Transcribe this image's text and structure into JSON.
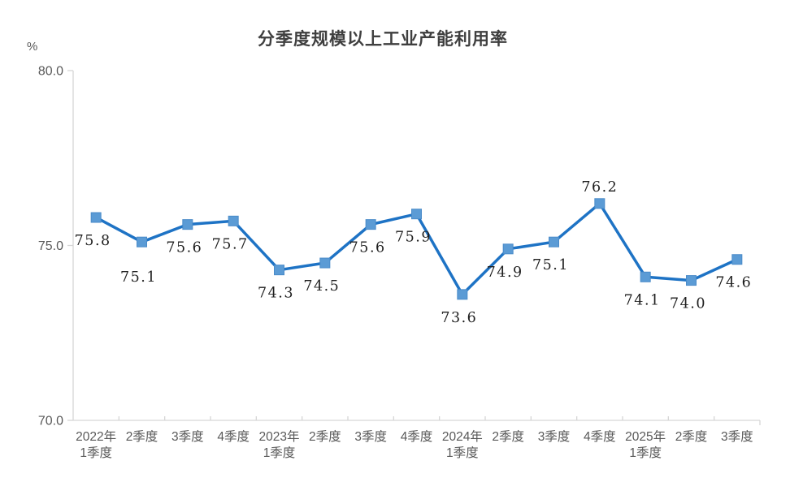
{
  "chart_data": {
    "type": "line",
    "title": "分季度规模以上工业产能利用率",
    "ylabel": "%",
    "xlabel": "",
    "ylim": [
      70.0,
      80.0
    ],
    "grid": false,
    "legend": "none",
    "y_ticks": [
      {
        "value": 80.0,
        "label": "80.0"
      },
      {
        "value": 75.0,
        "label": "75.0"
      },
      {
        "value": 70.0,
        "label": "70.0"
      }
    ],
    "categories": [
      [
        "2022年",
        "1季度"
      ],
      [
        "2季度"
      ],
      [
        "3季度"
      ],
      [
        "4季度"
      ],
      [
        "2023年",
        "1季度"
      ],
      [
        "2季度"
      ],
      [
        "3季度"
      ],
      [
        "4季度"
      ],
      [
        "2024年",
        "1季度"
      ],
      [
        "2季度"
      ],
      [
        "3季度"
      ],
      [
        "4季度"
      ],
      [
        "2025年",
        "1季度"
      ],
      [
        "2季度"
      ],
      [
        "3季度"
      ]
    ],
    "values": [
      75.8,
      75.1,
      75.6,
      75.7,
      74.3,
      74.5,
      75.6,
      75.9,
      73.6,
      74.9,
      75.1,
      76.2,
      74.1,
      74.0,
      74.6
    ],
    "data_labels": [
      "75.8",
      "75.1",
      "75.6",
      "75.7",
      "74.3",
      "74.5",
      "75.6",
      "75.9",
      "73.6",
      "74.9",
      "75.1",
      "76.2",
      "74.1",
      "74.0",
      "74.6"
    ],
    "label_placements": [
      "below",
      "below-far",
      "below",
      "below",
      "below",
      "below",
      "below",
      "below",
      "below",
      "below",
      "below",
      "above",
      "below",
      "below",
      "below"
    ],
    "colors": {
      "line": "#1E73C5",
      "marker_fill": "#5B9BD5",
      "marker_edge": "#4A8BC9",
      "axis": "#D6D6D6",
      "tick_label": "#595959",
      "title": "#3F3F3F",
      "data_label": "#1F1F1F",
      "background": "#FFFFFF"
    }
  }
}
